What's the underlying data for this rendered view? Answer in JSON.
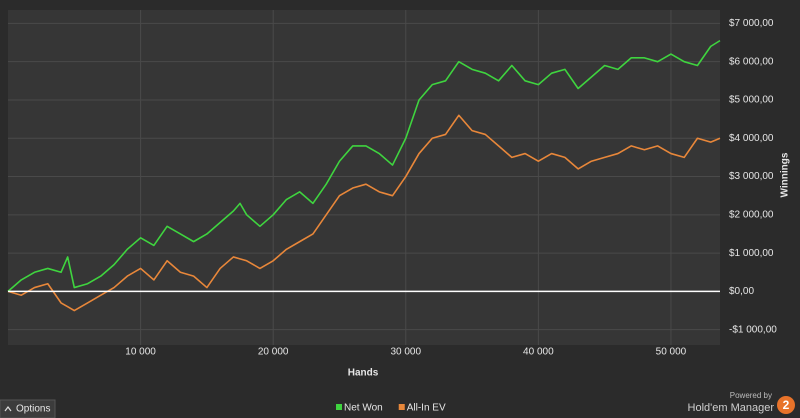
{
  "chart_data": {
    "type": "line",
    "xlabel": "Hands",
    "ylabel": "Winnings",
    "x": [
      0,
      1000,
      2000,
      3000,
      4000,
      4500,
      5000,
      6000,
      7000,
      8000,
      9000,
      10000,
      11000,
      12000,
      13000,
      14000,
      15000,
      16000,
      17000,
      17500,
      18000,
      19000,
      20000,
      21000,
      22000,
      23000,
      24000,
      25000,
      26000,
      27000,
      28000,
      29000,
      30000,
      31000,
      32000,
      33000,
      34000,
      35000,
      36000,
      37000,
      38000,
      39000,
      40000,
      41000,
      42000,
      43000,
      44000,
      45000,
      46000,
      47000,
      48000,
      49000,
      50000,
      51000,
      52000,
      53000,
      53700
    ],
    "series": [
      {
        "name": "Net Won",
        "color": "#3fd43f",
        "values": [
          0,
          300,
          500,
          600,
          500,
          900,
          100,
          200,
          400,
          700,
          1100,
          1400,
          1200,
          1700,
          1500,
          1300,
          1500,
          1800,
          2100,
          2300,
          2000,
          1700,
          2000,
          2400,
          2600,
          2300,
          2800,
          3400,
          3800,
          3800,
          3600,
          3300,
          4000,
          5000,
          5400,
          5500,
          6000,
          5800,
          5700,
          5500,
          5900,
          5500,
          5400,
          5700,
          5800,
          5300,
          5600,
          5900,
          5800,
          6100,
          6100,
          6000,
          6200,
          6000,
          5900,
          6400,
          6550
        ]
      },
      {
        "name": "All-In EV",
        "color": "#e8873a",
        "values": [
          0,
          -100,
          100,
          200,
          -300,
          -400,
          -500,
          -300,
          -100,
          100,
          400,
          600,
          300,
          800,
          500,
          400,
          100,
          600,
          900,
          850,
          800,
          600,
          800,
          1100,
          1300,
          1500,
          2000,
          2500,
          2700,
          2800,
          2600,
          2500,
          3000,
          3600,
          4000,
          4100,
          4600,
          4200,
          4100,
          3800,
          3500,
          3600,
          3400,
          3600,
          3500,
          3200,
          3400,
          3500,
          3600,
          3800,
          3700,
          3800,
          3600,
          3500,
          4000,
          3900,
          4000
        ]
      }
    ],
    "xlim": [
      0,
      53700
    ],
    "ylim": [
      -1400,
      7350
    ],
    "xticks": [
      {
        "value": 10000,
        "label": "10 000"
      },
      {
        "value": 20000,
        "label": "20 000"
      },
      {
        "value": 30000,
        "label": "30 000"
      },
      {
        "value": 40000,
        "label": "40 000"
      },
      {
        "value": 50000,
        "label": "50 000"
      }
    ],
    "yticks": [
      {
        "value": -1000,
        "label": "-$1 000,00"
      },
      {
        "value": 0,
        "label": "$0,00"
      },
      {
        "value": 1000,
        "label": "$1 000,00"
      },
      {
        "value": 2000,
        "label": "$2 000,00"
      },
      {
        "value": 3000,
        "label": "$3 000,00"
      },
      {
        "value": 4000,
        "label": "$4 000,00"
      },
      {
        "value": 5000,
        "label": "$5 000,00"
      },
      {
        "value": 6000,
        "label": "$6 000,00"
      },
      {
        "value": 7000,
        "label": "$7 000,00"
      }
    ],
    "grid": true,
    "zero_line": true,
    "legend": "bottom"
  },
  "ui": {
    "options_button": "Options",
    "powered_by": "Powered by",
    "brand": "Hold'em Manager",
    "brand_logo": "2"
  }
}
